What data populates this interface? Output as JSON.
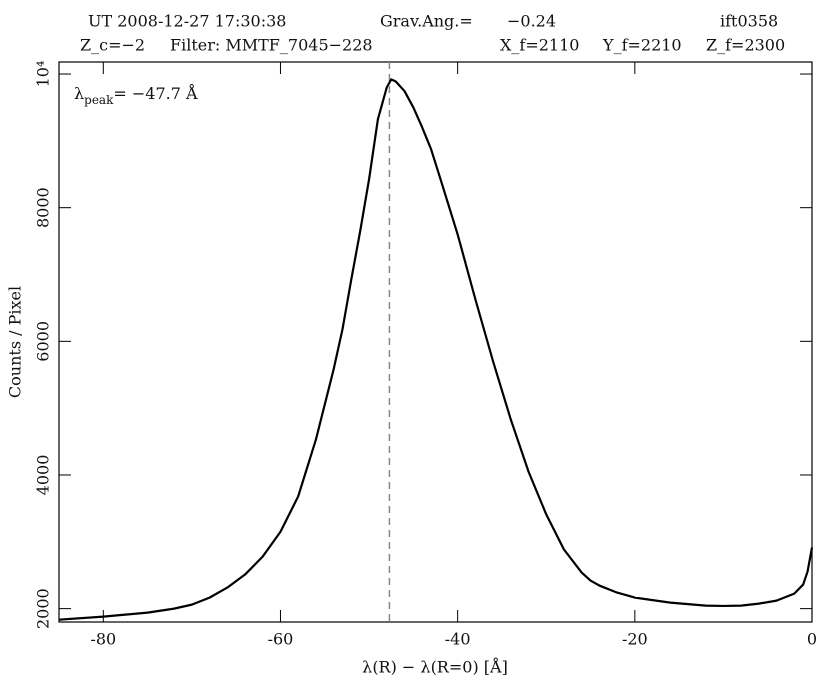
{
  "chart_data": {
    "type": "line",
    "header": [
      "UT  2008-12-27  17:30:38",
      "Grav.Ang.=",
      "−0.24",
      "ift0358",
      "Z_c=−2",
      "Filter: MMTF_7045−228",
      "X_f=2110",
      "Y_f=2210",
      "Z_f=2300"
    ],
    "annotation": {
      "symbol": "λ",
      "subscript": "peak",
      "text": "= −47.7 Å",
      "x": -47.7
    },
    "x_label": "λ(R) − λ(R=0)   [Å]",
    "y_label": "Counts / Pixel",
    "x": [
      -85,
      -80,
      -75,
      -72,
      -70,
      -68,
      -66,
      -64,
      -62,
      -60,
      -58,
      -56,
      -55,
      -54,
      -53,
      -52,
      -51,
      -50,
      -49,
      -48,
      -47.5,
      -47,
      -46,
      -45,
      -44,
      -43,
      -42,
      -40,
      -38,
      -36,
      -34,
      -32,
      -30,
      -28,
      -26,
      -25,
      -24,
      -22,
      -20,
      -16,
      -12,
      -10,
      -8,
      -6,
      -4,
      -2,
      -1,
      -0.5,
      0
    ],
    "series": [
      {
        "color": "#000000",
        "values": [
          1835,
          1880,
          1940,
          2000,
          2060,
          2165,
          2315,
          2510,
          2780,
          3150,
          3680,
          4530,
          5055,
          5580,
          6180,
          6930,
          7650,
          8425,
          9325,
          9800,
          9920,
          9890,
          9745,
          9500,
          9200,
          8875,
          8455,
          7600,
          6630,
          5700,
          4830,
          4050,
          3410,
          2885,
          2540,
          2420,
          2345,
          2240,
          2165,
          2090,
          2045,
          2040,
          2045,
          2075,
          2120,
          2225,
          2360,
          2555,
          2915
        ]
      }
    ],
    "xlim": [
      -85,
      0
    ],
    "xticks": [
      -80,
      -60,
      -40,
      -20,
      0
    ],
    "ylim": [
      1800,
      10180
    ],
    "yticks": [
      2000,
      4000,
      6000,
      8000,
      {
        "value": 10000,
        "label": "10⁴"
      }
    ]
  }
}
